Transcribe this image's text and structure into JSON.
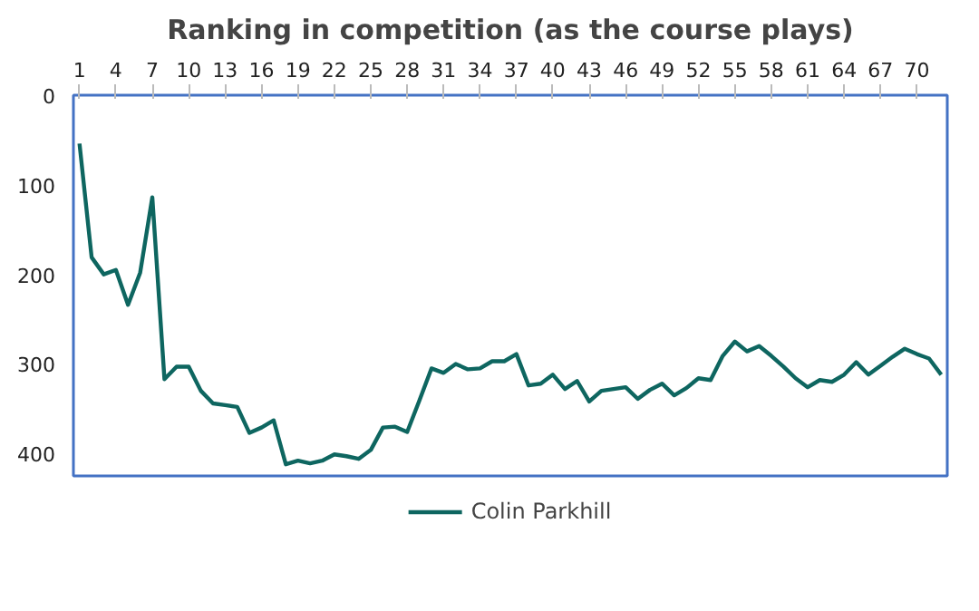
{
  "chart_data": {
    "type": "line",
    "title": "Ranking in competition (as the course plays)",
    "x": [
      1,
      2,
      3,
      4,
      5,
      6,
      7,
      8,
      9,
      10,
      11,
      12,
      13,
      14,
      15,
      16,
      17,
      18,
      19,
      20,
      21,
      22,
      23,
      24,
      25,
      26,
      27,
      28,
      29,
      30,
      31,
      32,
      33,
      34,
      35,
      36,
      37,
      38,
      39,
      40,
      41,
      42,
      43,
      44,
      45,
      46,
      47,
      48,
      49,
      50,
      51,
      52,
      53,
      54,
      55,
      56,
      57,
      58,
      59,
      60,
      61,
      62,
      63,
      64,
      65,
      66,
      67,
      68,
      69,
      70,
      71,
      72
    ],
    "series": [
      {
        "name": "Colin Parkhill",
        "color": "#0e6660",
        "values": [
          54,
          181,
          200,
          195,
          234,
          198,
          114,
          317,
          303,
          303,
          330,
          344,
          346,
          348,
          377,
          371,
          363,
          412,
          408,
          411,
          408,
          401,
          403,
          406,
          396,
          371,
          370,
          376,
          341,
          305,
          310,
          300,
          306,
          305,
          297,
          297,
          289,
          324,
          322,
          312,
          328,
          319,
          342,
          330,
          328,
          326,
          339,
          329,
          322,
          335,
          327,
          316,
          318,
          291,
          275,
          286,
          280,
          291,
          303,
          316,
          326,
          318,
          320,
          312,
          298,
          312,
          302,
          292,
          283,
          289,
          294,
          312
        ]
      }
    ],
    "xlim": [
      0.5,
      72.5
    ],
    "xticks": [
      1,
      4,
      7,
      10,
      13,
      16,
      19,
      22,
      25,
      28,
      31,
      34,
      37,
      40,
      43,
      46,
      49,
      52,
      55,
      58,
      61,
      64,
      67,
      70
    ],
    "ylim": [
      425,
      0
    ],
    "yticks": [
      0,
      100,
      200,
      300,
      400
    ],
    "grid": false,
    "legend": "bottom",
    "marker": "none",
    "line_style": "solid"
  }
}
